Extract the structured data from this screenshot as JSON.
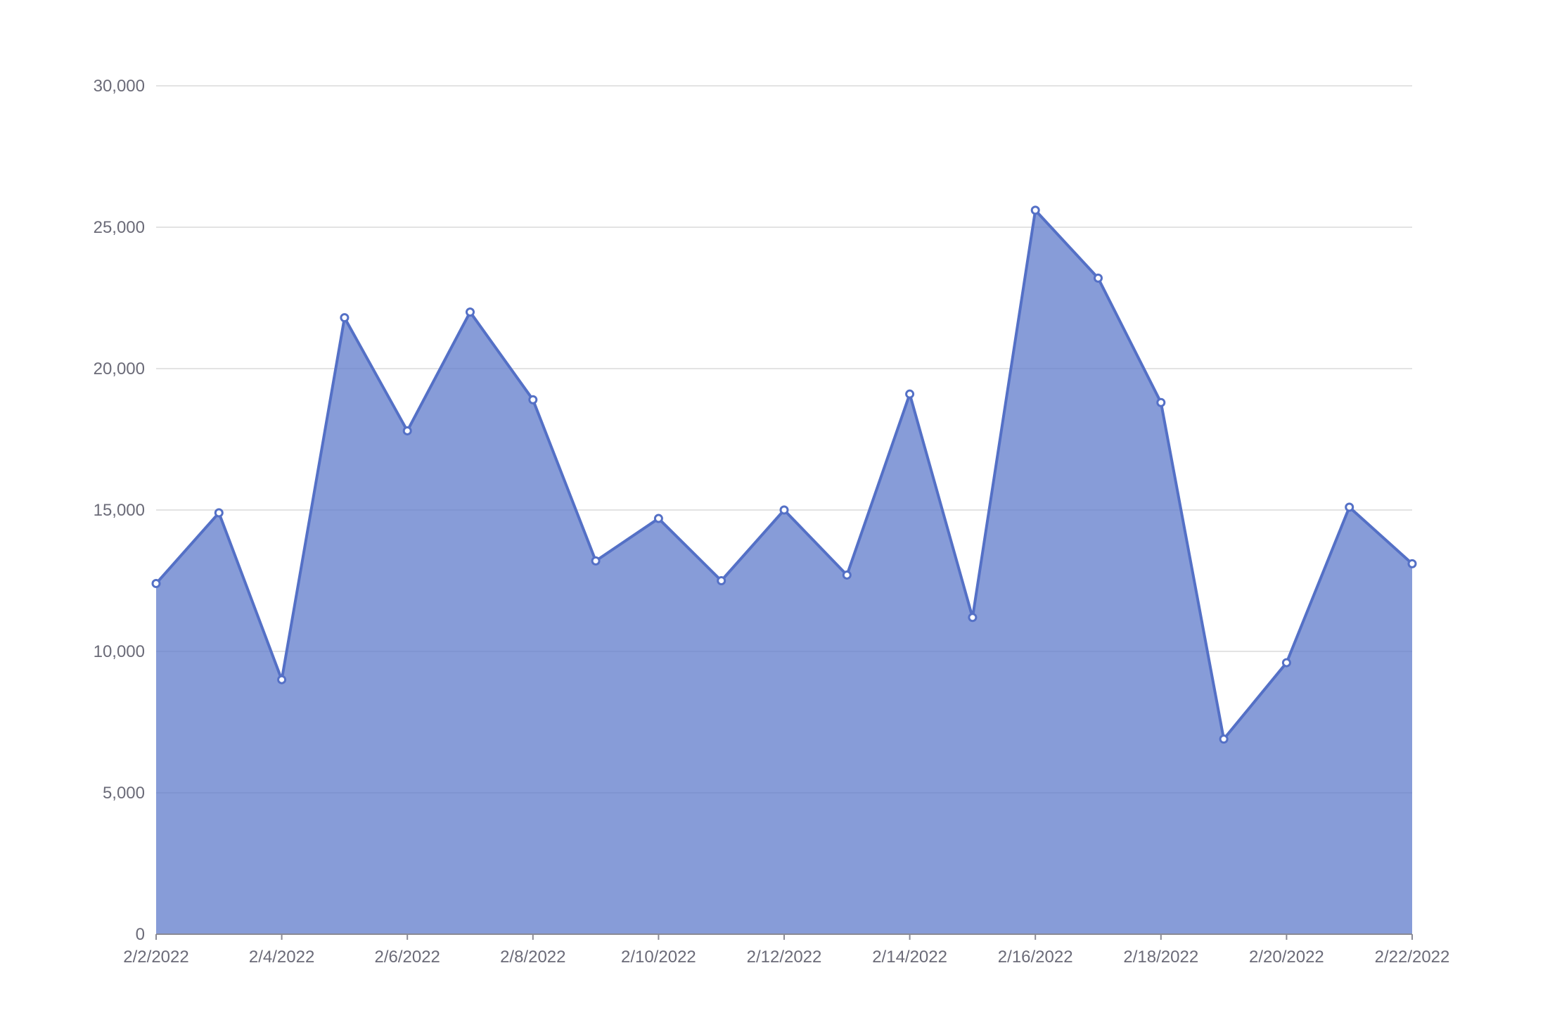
{
  "chart_data": {
    "type": "area",
    "title": "",
    "xlabel": "",
    "ylabel": "",
    "x": [
      "2/2/2022",
      "2/3/2022",
      "2/4/2022",
      "2/5/2022",
      "2/6/2022",
      "2/7/2022",
      "2/8/2022",
      "2/9/2022",
      "2/10/2022",
      "2/11/2022",
      "2/12/2022",
      "2/13/2022",
      "2/14/2022",
      "2/15/2022",
      "2/16/2022",
      "2/17/2022",
      "2/18/2022",
      "2/19/2022",
      "2/20/2022",
      "2/21/2022",
      "2/22/2022"
    ],
    "x_tick_labels": [
      "2/2/2022",
      "2/4/2022",
      "2/6/2022",
      "2/8/2022",
      "2/10/2022",
      "2/12/2022",
      "2/14/2022",
      "2/16/2022",
      "2/18/2022",
      "2/20/2022",
      "2/22/2022"
    ],
    "y_tick_labels": [
      "0",
      "5,000",
      "10,000",
      "15,000",
      "20,000",
      "25,000",
      "30,000"
    ],
    "y_ticks": [
      0,
      5000,
      10000,
      15000,
      20000,
      25000,
      30000
    ],
    "ylim": [
      0,
      30000
    ],
    "grid": true,
    "series": [
      {
        "values": [
          12400,
          14900,
          9000,
          21800,
          17800,
          22000,
          18900,
          13200,
          14700,
          12500,
          15000,
          12700,
          19100,
          11200,
          25600,
          23200,
          18800,
          6900,
          9600,
          15100,
          13100
        ],
        "color": "#5470c6"
      }
    ]
  }
}
